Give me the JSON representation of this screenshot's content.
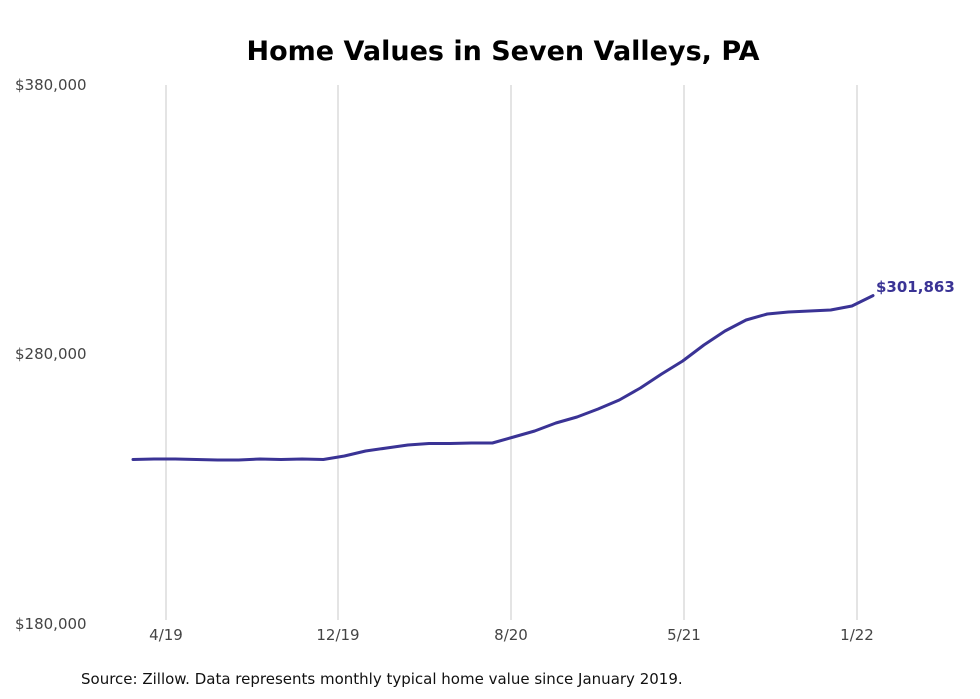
{
  "chart_data": {
    "type": "line",
    "title": "Home Values in Seven Valleys, PA",
    "xlabel": "",
    "ylabel": "",
    "ylim": [
      180000,
      380000
    ],
    "yticks": [
      180000,
      280000,
      380000
    ],
    "ytick_labels": [
      "$180,000",
      "$280,000",
      "$380,000"
    ],
    "xtick_labels": [
      "4/19",
      "12/19",
      "8/20",
      "5/21",
      "1/22"
    ],
    "grid": "vertical gridlines at x ticks",
    "legend": "none",
    "series": [
      {
        "name": "Typical home value",
        "color": "#3a3395",
        "values": [
          241040,
          241224,
          241224,
          241040,
          240853,
          240853,
          241224,
          241040,
          241224,
          241040,
          242338,
          244193,
          245306,
          246419,
          246976,
          246976,
          247161,
          247161,
          249388,
          251614,
          254583,
          256809,
          259777,
          263117,
          267570,
          272764,
          277588,
          283525,
          288720,
          292801,
          295028,
          295770,
          296141,
          296512,
          297996,
          301863
        ]
      }
    ],
    "annotations": [
      {
        "text": "$301,863",
        "point": "last",
        "color": "#3a3395"
      }
    ]
  },
  "footer": {
    "source": "Source: Zillow. Data represents monthly typical home value since January 2019."
  }
}
